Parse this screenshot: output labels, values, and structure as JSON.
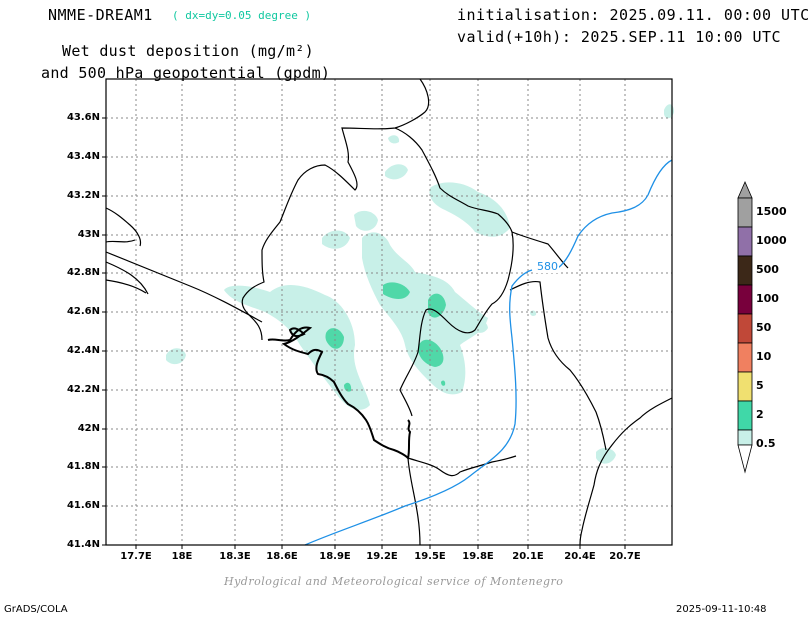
{
  "header": {
    "model": "NMME-DREAM1",
    "resolution": "( dx=dy=0.05 degree )",
    "init": "initialisation: 2025.09.11. 00:00 UTC",
    "valid": "valid(+10h): 2025.SEP.11 10:00 UTC",
    "title_line1": "Wet dust deposition (mg/m²)",
    "title_line2": "and 500 hPa geopotential (gpdm)"
  },
  "map": {
    "lat_labels": [
      "43.6N",
      "43.4N",
      "43.2N",
      "43N",
      "42.8N",
      "42.6N",
      "42.4N",
      "42.2N",
      "42N",
      "41.8N",
      "41.6N",
      "41.4N"
    ],
    "lon_labels": [
      "17.7E",
      "18E",
      "18.3E",
      "18.6E",
      "18.9E",
      "19.2E",
      "19.5E",
      "19.8E",
      "20.1E",
      "20.4E",
      "20.7E"
    ],
    "contour_label": "580",
    "contour_color": "#1e90e6"
  },
  "legend": {
    "levels": [
      "1500",
      "1000",
      "500",
      "100",
      "50",
      "10",
      "5",
      "2",
      "0.5"
    ],
    "colors": [
      "#a0a0a0",
      "#9070a8",
      "#3c2818",
      "#78003c",
      "#c04838",
      "#f08060",
      "#f0e070",
      "#40d8a8",
      "#c8f0e8"
    ]
  },
  "footer": {
    "credit": "Hydrological and Meteorological service of Montenegro",
    "software": "GrADS/COLA",
    "timestamp": "2025-09-11-10:48"
  }
}
